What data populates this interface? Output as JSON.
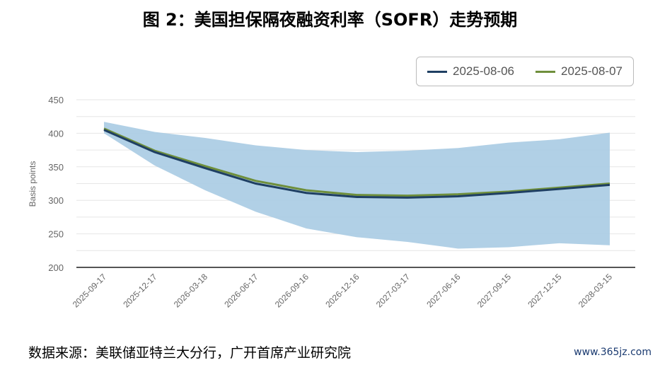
{
  "title": "图 2：美国担保隔夜融资利率（SOFR）走势预期",
  "source": "数据来源：美联储亚特兰大分行，广开首席产业研究院",
  "watermark": "www.365jz.com",
  "chart_data": {
    "type": "line",
    "ylabel": "Basis points",
    "ylim": [
      200,
      450
    ],
    "yticks": [
      200,
      250,
      300,
      350,
      400,
      450
    ],
    "categories": [
      "2025-09-17",
      "2025-12-17",
      "2026-03-18",
      "2026-06-17",
      "2026-09-16",
      "2026-12-16",
      "2027-03-17",
      "2027-06-16",
      "2027-09-15",
      "2027-12-15",
      "2028-03-15"
    ],
    "series": [
      {
        "name": "2025-08-06",
        "color": "#1f3f63",
        "values": [
          405,
          372,
          348,
          325,
          311,
          305,
          304,
          306,
          311,
          317,
          323
        ]
      },
      {
        "name": "2025-08-07",
        "color": "#6f8f3c",
        "values": [
          407,
          374,
          351,
          329,
          315,
          308,
          307,
          309,
          313,
          319,
          325
        ]
      }
    ],
    "band": {
      "color": "#a9cbe3",
      "upper": [
        417,
        402,
        393,
        382,
        375,
        372,
        374,
        378,
        386,
        391,
        401
      ],
      "lower": [
        400,
        352,
        315,
        283,
        258,
        245,
        238,
        228,
        230,
        236,
        233
      ]
    },
    "legend_position": "top-right"
  }
}
